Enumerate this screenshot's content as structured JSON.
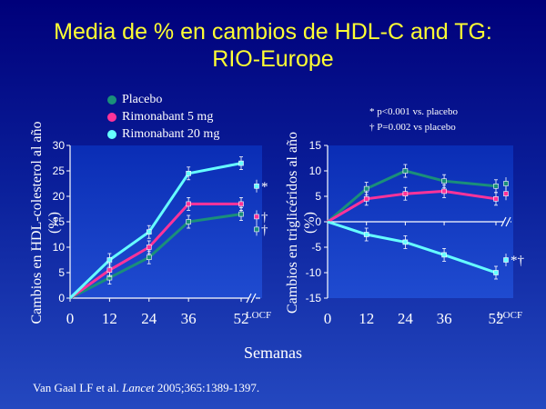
{
  "title": {
    "line1": "Media de % en cambios de HDL-C and TG:",
    "line2": "RIO-Europe"
  },
  "legend": [
    {
      "label": "Placebo",
      "color": "#1a8f7a"
    },
    {
      "label": "Rimonabant 5 mg",
      "color": "#ff3399"
    },
    {
      "label": "Rimonabant 20 mg",
      "color": "#66ffff"
    }
  ],
  "notes": {
    "line1": "* p<0.001 vs. placebo",
    "line2": "† P=0.002 vs placebo"
  },
  "x_axis_label": "Semanas",
  "citation": {
    "authors": "Van Gaal LF et al.",
    "journal": "Lancet",
    "details": "2005;365:1389-1397."
  },
  "chart_data": [
    {
      "type": "line",
      "ylabel_line1": "Cambios en HDL-colesterol al año",
      "ylabel_line2": "(%)",
      "ylim": [
        0,
        30
      ],
      "yticks": [
        "0",
        "5",
        "10",
        "15",
        "20",
        "25",
        "30"
      ],
      "x": [
        0,
        12,
        24,
        36,
        52
      ],
      "xticks": [
        "0",
        "12",
        "24",
        "36",
        "52"
      ],
      "locf_label": "LOCF",
      "series": [
        {
          "name": "Placebo",
          "values": [
            0,
            4,
            8,
            15,
            16.5
          ],
          "locf": 13.5,
          "marker": "†"
        },
        {
          "name": "Rimonabant 5 mg",
          "values": [
            0,
            5.5,
            10,
            18.5,
            18.5
          ],
          "locf": 16,
          "marker": "†"
        },
        {
          "name": "Rimonabant 20 mg",
          "values": [
            0,
            7.5,
            13,
            24.5,
            26.5
          ],
          "locf": 22,
          "marker": "*"
        }
      ]
    },
    {
      "type": "line",
      "ylabel_line1": "Cambios en triglicéridos al año",
      "ylabel_line2": "(%)",
      "ylim": [
        -15,
        15
      ],
      "yticks": [
        "-15",
        "-10",
        "-5",
        "0",
        "5",
        "10",
        "15"
      ],
      "x": [
        0,
        12,
        24,
        36,
        52
      ],
      "xticks": [
        "0",
        "12",
        "24",
        "36",
        "52"
      ],
      "locf_label": "LOCF",
      "series": [
        {
          "name": "Placebo",
          "values": [
            0,
            6.5,
            10,
            8,
            7
          ],
          "locf": 7.5
        },
        {
          "name": "Rimonabant 5 mg",
          "values": [
            0,
            4.5,
            5.5,
            6,
            4.5
          ],
          "locf": 5.5
        },
        {
          "name": "Rimonabant 20 mg",
          "values": [
            0,
            -2.5,
            -4,
            -6.5,
            -10
          ],
          "locf": -7.5,
          "marker": "*†"
        }
      ]
    }
  ]
}
